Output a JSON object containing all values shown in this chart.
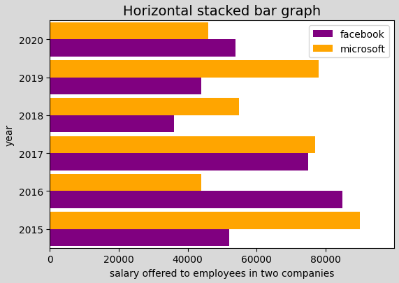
{
  "title": "Horizontal stacked bar graph",
  "xlabel": "salary offered to employees in two companies",
  "ylabel": "year",
  "years": [
    "2015",
    "2016",
    "2017",
    "2018",
    "2019",
    "2020"
  ],
  "facebook": [
    52000,
    85000,
    75000,
    36000,
    44000,
    54000
  ],
  "microsoft": [
    90000,
    44000,
    77000,
    55000,
    78000,
    46000
  ],
  "facebook_color": "#800080",
  "microsoft_color": "#FFA500",
  "xlim": [
    0,
    100000
  ],
  "xticks": [
    0,
    20000,
    40000,
    60000,
    80000
  ],
  "bar_height": 0.45,
  "legend_labels": [
    "facebook",
    "microsoft"
  ],
  "title_fontsize": 14,
  "label_fontsize": 10,
  "tick_fontsize": 10,
  "fig_width": 5.71,
  "fig_height": 4.06,
  "dpi": 100
}
